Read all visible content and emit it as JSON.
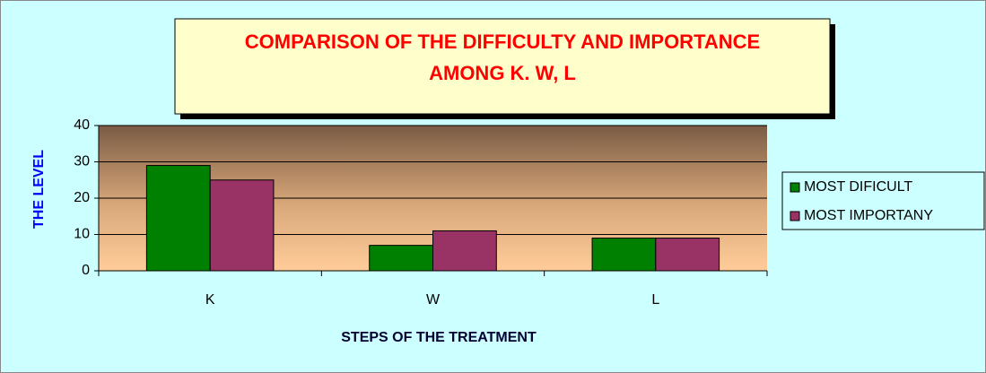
{
  "chart_data": {
    "type": "bar",
    "title": [
      "COMPARISON OF THE DIFFICULTY AND IMPORTANCE",
      "AMONG K. W, L"
    ],
    "x_label": "STEPS OF THE TREATMENT",
    "y_label": "THE LEVEL",
    "categories": [
      "K",
      "W",
      "L"
    ],
    "series": [
      {
        "name": "MOST DIFICULT",
        "color": "#008000",
        "values": [
          29,
          7,
          9
        ]
      },
      {
        "name": "MOST IMPORTANY",
        "color": "#993366",
        "values": [
          25,
          11,
          9
        ]
      }
    ],
    "ylim": [
      0,
      40
    ],
    "yticks": [
      0,
      10,
      20,
      30,
      40
    ],
    "grid": true,
    "legend": "right"
  }
}
